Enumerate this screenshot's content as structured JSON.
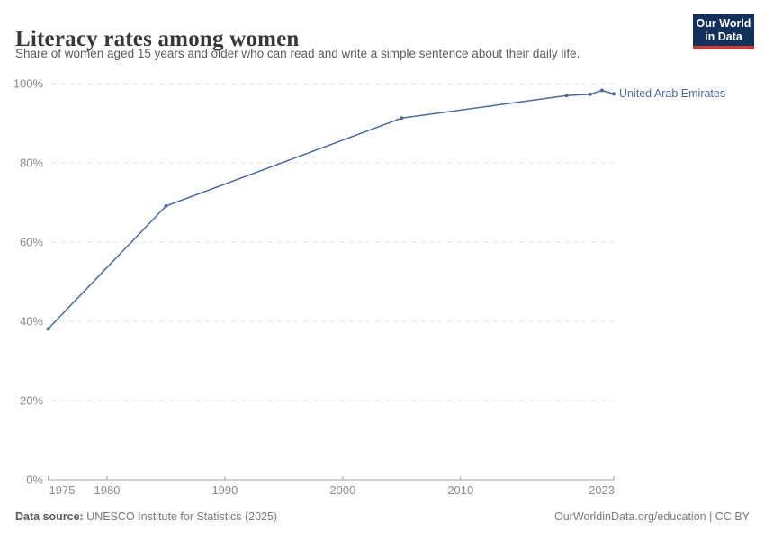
{
  "header": {
    "title": "Literacy rates among women",
    "subtitle": "Share of women aged 15 years and older who can read and write a simple sentence about their daily life.",
    "logo": {
      "line1": "Our World",
      "line2": "in Data",
      "bg_color": "#12315a",
      "accent_color": "#cf3a31"
    }
  },
  "chart_data": {
    "type": "line",
    "title": "Literacy rates among women",
    "subtitle": "Share of women aged 15 years and older who can read and write a simple sentence about their daily life.",
    "series": [
      {
        "name": "United Arab Emirates",
        "color": "#4C6A9C",
        "points": [
          {
            "year": 1975,
            "value": 38.1
          },
          {
            "year": 1985,
            "value": 69.1
          },
          {
            "year": 2005,
            "value": 91.3
          },
          {
            "year": 2019,
            "value": 97.0
          },
          {
            "year": 2021,
            "value": 97.3
          },
          {
            "year": 2022,
            "value": 98.3
          },
          {
            "year": 2023,
            "value": 97.4
          }
        ]
      }
    ],
    "xlim": [
      1975,
      2023
    ],
    "ylim": [
      0,
      100
    ],
    "xticks": [
      1975,
      1980,
      1990,
      2000,
      2010,
      2023
    ],
    "yticks": [
      0,
      20,
      40,
      60,
      80,
      100
    ],
    "ytick_suffix": "%",
    "grid": "horizontal-dashed",
    "legend_position": "end-of-line",
    "colors": {
      "grid": "#e1e1e1",
      "axis": "#a5a5a5",
      "tick_label": "#8b8b8b"
    }
  },
  "footer": {
    "source_label": "Data source:",
    "source_text": " UNESCO Institute for Statistics (2025)",
    "credit": "OurWorldinData.org/education | CC BY"
  }
}
